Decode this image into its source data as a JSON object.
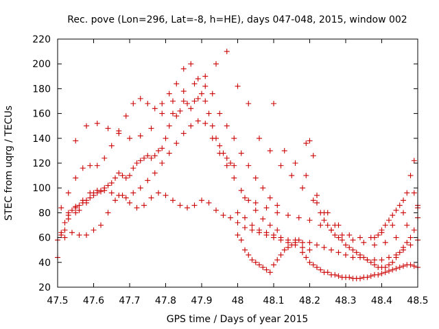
{
  "chart_data": {
    "type": "scatter",
    "title": "Rec. pove (Lon=296, Lat=-8, h=HE), days 047-048, 2015, window 002",
    "xlabel": "GPS time / Days of year 2015",
    "ylabel": "STEC from uqrg / TECUs",
    "xlim": [
      47.5,
      48.5
    ],
    "ylim": [
      20,
      220
    ],
    "xticks": [
      "47.5",
      "47.6",
      "47.7",
      "47.8",
      "47.9",
      "48",
      "48.1",
      "48.2",
      "48.3",
      "48.4",
      "48.5"
    ],
    "yticks": [
      "20",
      "40",
      "60",
      "80",
      "100",
      "120",
      "140",
      "160",
      "180",
      "200",
      "220"
    ],
    "grid": false,
    "marker": "plus",
    "color": "#cc0000",
    "series": [
      {
        "x": [
          47.5,
          47.5,
          47.51,
          47.51,
          47.52,
          47.52,
          47.53,
          47.53,
          47.54,
          47.55,
          47.55,
          47.56,
          47.56,
          47.57,
          47.58,
          47.58,
          47.59,
          47.6,
          47.6,
          47.61,
          47.62,
          47.62,
          47.63,
          47.64,
          47.65,
          47.66,
          47.67,
          47.68,
          47.69,
          47.7,
          47.71,
          47.72,
          47.73,
          47.74,
          47.75,
          47.76,
          47.77,
          47.78,
          47.79,
          47.8,
          47.81,
          47.82,
          47.83,
          47.84,
          47.85,
          47.86,
          47.87,
          47.88,
          47.89,
          47.9,
          47.91,
          47.92,
          47.93,
          47.94,
          47.95,
          47.96,
          47.97,
          47.98,
          47.99
        ],
        "y": [
          44,
          58,
          64,
          62,
          66,
          72,
          78,
          75,
          82,
          80,
          84,
          82,
          86,
          88,
          90,
          88,
          92,
          94,
          96,
          96,
          97,
          98,
          100,
          102,
          104,
          108,
          112,
          110,
          108,
          110,
          116,
          120,
          122,
          124,
          126,
          124,
          126,
          130,
          132,
          140,
          150,
          160,
          158,
          162,
          170,
          168,
          164,
          170,
          172,
          176,
          170,
          160,
          150,
          140,
          134,
          128,
          124,
          120,
          118
        ]
      },
      {
        "x": [
          47.51,
          47.53,
          47.55,
          47.57,
          47.59,
          47.61,
          47.63,
          47.65,
          47.67,
          47.69,
          47.71,
          47.73,
          47.75,
          47.77,
          47.79,
          47.81,
          47.83,
          47.85,
          47.87,
          47.89,
          47.91,
          47.93,
          47.95,
          47.97,
          47.99,
          48.01,
          48.03,
          48.05,
          48.07,
          48.09,
          48.11
        ],
        "y": [
          84,
          80,
          85,
          90,
          96,
          98,
          98,
          96,
          94,
          92,
          96,
          100,
          106,
          112,
          120,
          128,
          136,
          144,
          150,
          154,
          152,
          140,
          128,
          118,
          108,
          98,
          90,
          82,
          75,
          70,
          66
        ]
      },
      {
        "x": [
          47.52,
          47.54,
          47.56,
          47.58,
          47.6,
          47.62,
          47.64,
          47.66,
          47.68,
          47.7,
          47.72,
          47.74,
          47.76,
          47.78,
          47.8,
          47.82,
          47.84,
          47.86,
          47.88,
          47.9,
          47.92,
          47.94,
          47.96,
          47.98,
          48.0,
          48.02,
          48.04,
          48.06,
          48.08,
          48.1,
          48.12,
          48.14,
          48.16,
          48.18,
          48.2
        ],
        "y": [
          60,
          64,
          62,
          62,
          66,
          70,
          80,
          90,
          94,
          88,
          84,
          86,
          92,
          96,
          94,
          90,
          86,
          84,
          86,
          90,
          88,
          82,
          78,
          76,
          72,
          68,
          66,
          64,
          62,
          60,
          58,
          56,
          54,
          52,
          50
        ]
      },
      {
        "x": [
          47.53,
          47.55,
          47.57,
          47.59,
          47.61,
          47.63,
          47.65,
          47.67,
          47.69,
          47.71,
          47.73,
          47.75,
          47.77,
          47.79,
          47.81,
          47.83,
          47.85,
          47.87,
          47.89,
          47.91,
          47.93,
          47.95,
          47.97,
          47.99,
          48.01,
          48.03,
          48.05,
          48.07,
          48.09,
          48.11
        ],
        "y": [
          96,
          108,
          116,
          118,
          118,
          124,
          134,
          146,
          158,
          168,
          172,
          168,
          164,
          168,
          176,
          184,
          196,
          200,
          188,
          182,
          176,
          160,
          150,
          140,
          128,
          118,
          108,
          100,
          92,
          86
        ]
      },
      {
        "x": [
          47.55,
          47.58,
          47.61,
          47.64,
          47.67,
          47.7,
          47.73,
          47.76,
          47.79,
          47.82,
          47.85,
          47.88,
          47.91,
          47.94,
          47.97,
          48.0,
          48.03,
          48.06,
          48.09,
          48.12,
          48.15,
          48.18,
          48.21,
          48.24,
          48.27
        ],
        "y": [
          138,
          150,
          152,
          148,
          144,
          140,
          142,
          148,
          160,
          170,
          178,
          184,
          190,
          200,
          210,
          182,
          168,
          140,
          130,
          118,
          110,
          100,
          90,
          80,
          70
        ]
      },
      {
        "x": [
          48.0,
          48.01,
          48.02,
          48.03,
          48.04,
          48.05,
          48.06,
          48.07,
          48.08,
          48.09,
          48.1,
          48.11,
          48.12,
          48.13,
          48.14,
          48.15,
          48.16,
          48.17,
          48.18,
          48.19,
          48.2,
          48.21,
          48.22,
          48.23,
          48.24,
          48.25,
          48.26,
          48.27,
          48.28,
          48.29,
          48.3,
          48.31,
          48.32,
          48.33,
          48.34,
          48.35,
          48.36,
          48.37,
          48.38,
          48.39,
          48.4,
          48.41,
          48.42,
          48.43,
          48.44,
          48.45,
          48.46,
          48.47,
          48.48,
          48.49,
          48.5
        ],
        "y": [
          62,
          58,
          50,
          46,
          42,
          40,
          38,
          36,
          34,
          32,
          38,
          42,
          46,
          50,
          52,
          54,
          56,
          58,
          48,
          44,
          40,
          38,
          36,
          34,
          32,
          32,
          30,
          30,
          29,
          28,
          28,
          28,
          27,
          27,
          27,
          28,
          28,
          29,
          30,
          30,
          31,
          32,
          33,
          34,
          35,
          36,
          37,
          38,
          38,
          37,
          36
        ]
      },
      {
        "x": [
          48.0,
          48.02,
          48.04,
          48.06,
          48.08,
          48.1,
          48.12,
          48.14,
          48.16,
          48.18,
          48.2,
          48.22,
          48.24,
          48.26,
          48.28,
          48.3,
          48.32,
          48.34,
          48.36,
          48.38,
          48.4,
          48.42,
          48.44,
          48.46,
          48.48,
          48.5
        ],
        "y": [
          80,
          76,
          70,
          66,
          64,
          62,
          60,
          58,
          58,
          56,
          56,
          54,
          52,
          50,
          48,
          46,
          44,
          44,
          42,
          42,
          42,
          44,
          46,
          50,
          54,
          58
        ]
      },
      {
        "x": [
          48.02,
          48.05,
          48.08,
          48.11,
          48.14,
          48.17,
          48.2,
          48.23,
          48.26,
          48.29,
          48.32,
          48.35,
          48.38,
          48.41,
          48.44,
          48.47,
          48.5
        ],
        "y": [
          92,
          88,
          84,
          80,
          78,
          76,
          74,
          70,
          66,
          62,
          58,
          56,
          54,
          56,
          60,
          70,
          84
        ]
      },
      {
        "x": [
          48.1,
          48.13,
          48.16,
          48.19,
          48.22,
          48.25,
          48.28,
          48.31,
          48.34,
          48.37,
          48.4,
          48.43,
          48.46,
          48.49
        ],
        "y": [
          168,
          130,
          120,
          110,
          94,
          80,
          70,
          62,
          60,
          60,
          64,
          70,
          80,
          96
        ]
      },
      {
        "x": [
          48.19,
          48.2,
          48.21,
          48.22,
          48.23,
          48.24,
          48.25,
          48.26,
          48.27,
          48.28,
          48.29,
          48.3,
          48.31,
          48.32,
          48.33,
          48.34,
          48.35,
          48.36,
          48.37,
          48.38,
          48.39,
          48.4,
          48.41,
          48.42,
          48.43,
          48.44,
          48.45,
          48.46,
          48.47,
          48.48,
          48.49,
          48.5
        ],
        "y": [
          136,
          138,
          126,
          88,
          80,
          74,
          70,
          66,
          62,
          60,
          58,
          54,
          52,
          50,
          48,
          46,
          44,
          42,
          40,
          38,
          36,
          36,
          36,
          38,
          40,
          44,
          48,
          52,
          56,
          60,
          66,
          76
        ]
      },
      {
        "x": [
          48.38,
          48.39,
          48.4,
          48.41,
          48.42,
          48.43,
          48.44,
          48.45,
          48.46,
          48.47,
          48.48,
          48.49,
          48.5
        ],
        "y": [
          60,
          62,
          66,
          70,
          74,
          78,
          82,
          86,
          90,
          96,
          110,
          122,
          86
        ]
      }
    ]
  }
}
